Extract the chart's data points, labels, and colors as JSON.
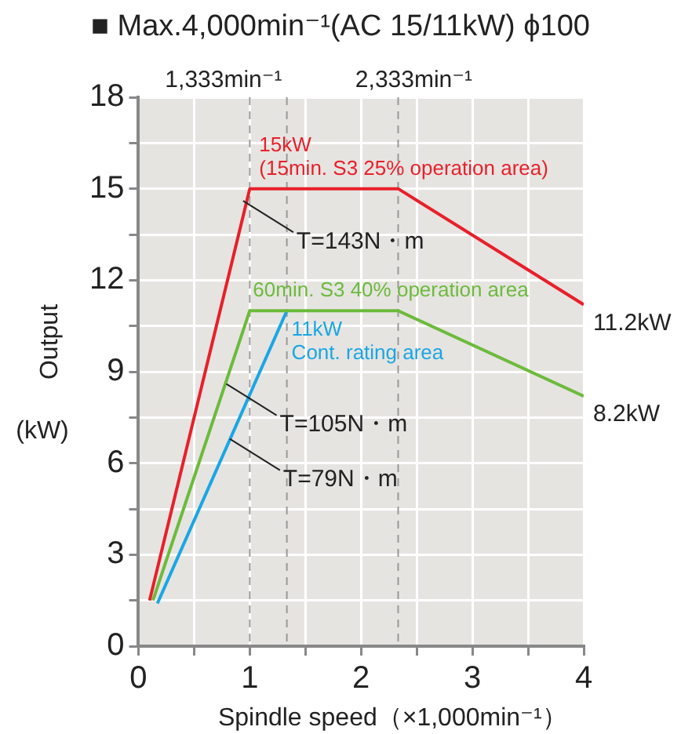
{
  "chart_data": {
    "type": "line",
    "title": "■ Max.4,000min⁻¹(AC 15/11kW) ϕ100",
    "xlabel": "Spindle speed（×1,000min⁻¹）",
    "ylabel": "Output (kW)",
    "series": [
      {
        "name": "15kW\n(15min. S3 25% operation area)",
        "color": "#e8202a",
        "x": [
          0.1,
          1,
          2.333,
          4
        ],
        "values": [
          1.5,
          15,
          15,
          11.2
        ]
      },
      {
        "name": "60min. S3 40% operation area",
        "color": "#6cbb3c",
        "x": [
          0.13,
          1,
          2.333,
          4
        ],
        "values": [
          1.5,
          11,
          11,
          8.2
        ]
      },
      {
        "name": "11kW\nCont. rating area",
        "color": "#1aa6e4",
        "x": [
          0.17,
          1.333
        ],
        "values": [
          1.4,
          11
        ]
      }
    ],
    "xlim": [
      0,
      4
    ],
    "ylim": [
      0,
      18
    ],
    "xticks": [
      0,
      {
        "value": 0.5,
        "label": null
      },
      1,
      {
        "value": 1.5,
        "label": null
      },
      2,
      {
        "value": 2.5,
        "label": null
      },
      3,
      {
        "value": 3.5,
        "label": null
      },
      4
    ],
    "yticks": [
      0,
      {
        "value": 1.5,
        "label": null
      },
      3,
      {
        "value": 4.5,
        "label": null
      },
      6,
      {
        "value": 7.5,
        "label": null
      },
      9,
      {
        "value": 10.5,
        "label": null
      },
      12,
      {
        "value": 13.5,
        "label": null
      },
      15,
      {
        "value": 16.5,
        "label": null
      },
      18
    ],
    "grid": true,
    "marker": "none",
    "line_style": "solid",
    "legend": false,
    "ref_lines": [
      {
        "axis": "x",
        "value": 1,
        "label": null,
        "color": "#999999",
        "line_style": "dashed"
      },
      {
        "axis": "x",
        "value": 1.333,
        "label": "1,333min⁻¹",
        "color": "#999999",
        "line_style": "dashed"
      },
      {
        "axis": "x",
        "value": 2.333,
        "label": "2,333min⁻¹",
        "color": "#999999",
        "line_style": "dashed"
      }
    ],
    "annotations": [
      {
        "text": "T=143N・m",
        "x": 0.94,
        "y": 14.6
      },
      {
        "text": "T=105N・m",
        "x": 0.79,
        "y": 8.6
      },
      {
        "text": "T=79N・m",
        "x": 0.82,
        "y": 6.8
      },
      {
        "text": "11.2kW",
        "x": 4,
        "y": 11.2
      },
      {
        "text": "8.2kW",
        "x": 4,
        "y": 8.2
      }
    ]
  }
}
